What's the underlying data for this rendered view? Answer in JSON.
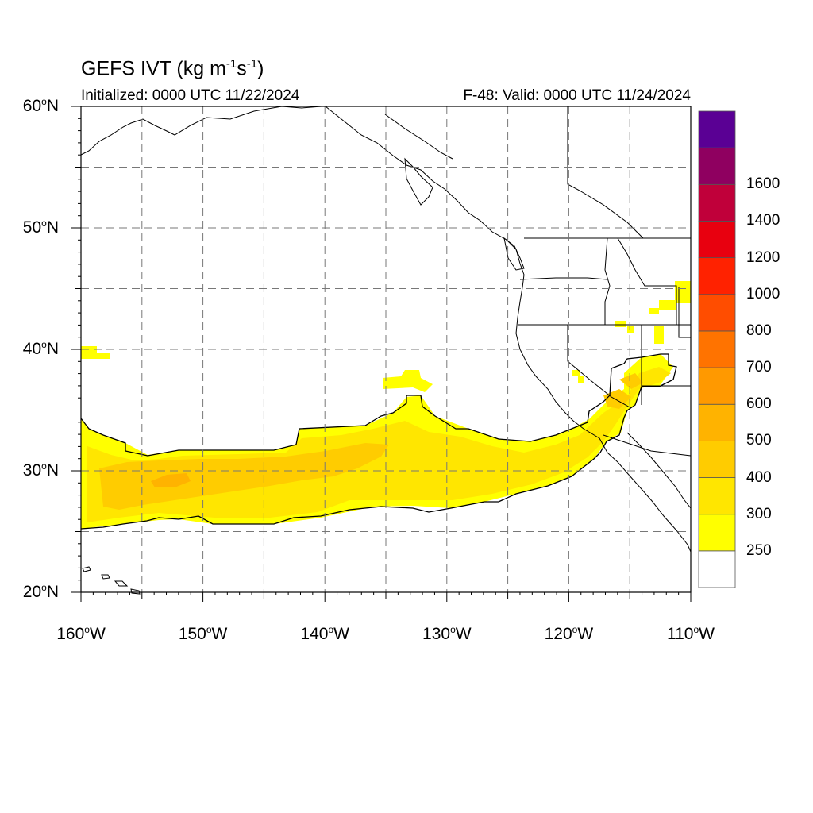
{
  "title": {
    "main": "GEFS IVT (kg m",
    "sup1": "-1",
    "mid": "s",
    "sup2": "-1",
    "end": ")"
  },
  "initialized": "Initialized: 0000 UTC 11/22/2024",
  "valid": "F-48: Valid: 0000 UTC 11/24/2024",
  "lat_labels": [
    "60",
    "50",
    "40",
    "30",
    "20"
  ],
  "lat_suffix": "N",
  "lon_labels": [
    "160",
    "150",
    "140",
    "130",
    "120",
    "110"
  ],
  "lon_suffix": "W",
  "colorbar": {
    "labels": [
      "250",
      "300",
      "400",
      "500",
      "600",
      "700",
      "800",
      "1000",
      "1200",
      "1400",
      "1600"
    ],
    "colors": [
      "#ffffff",
      "#ffff00",
      "#ffe600",
      "#ffcc00",
      "#ffb300",
      "#ff9900",
      "#ff7300",
      "#ff4d00",
      "#ff2200",
      "#e8000f",
      "#c0003a",
      "#8f0060",
      "#5a0094"
    ]
  },
  "map": {
    "lon_range": [
      -160,
      -110
    ],
    "lat_range": [
      20,
      60
    ],
    "fill_colors": {
      "ivt_250": "#ffff00",
      "ivt_300": "#ffe600",
      "ivt_400": "#ffcc00",
      "ivt_500": "#ffb300"
    }
  }
}
